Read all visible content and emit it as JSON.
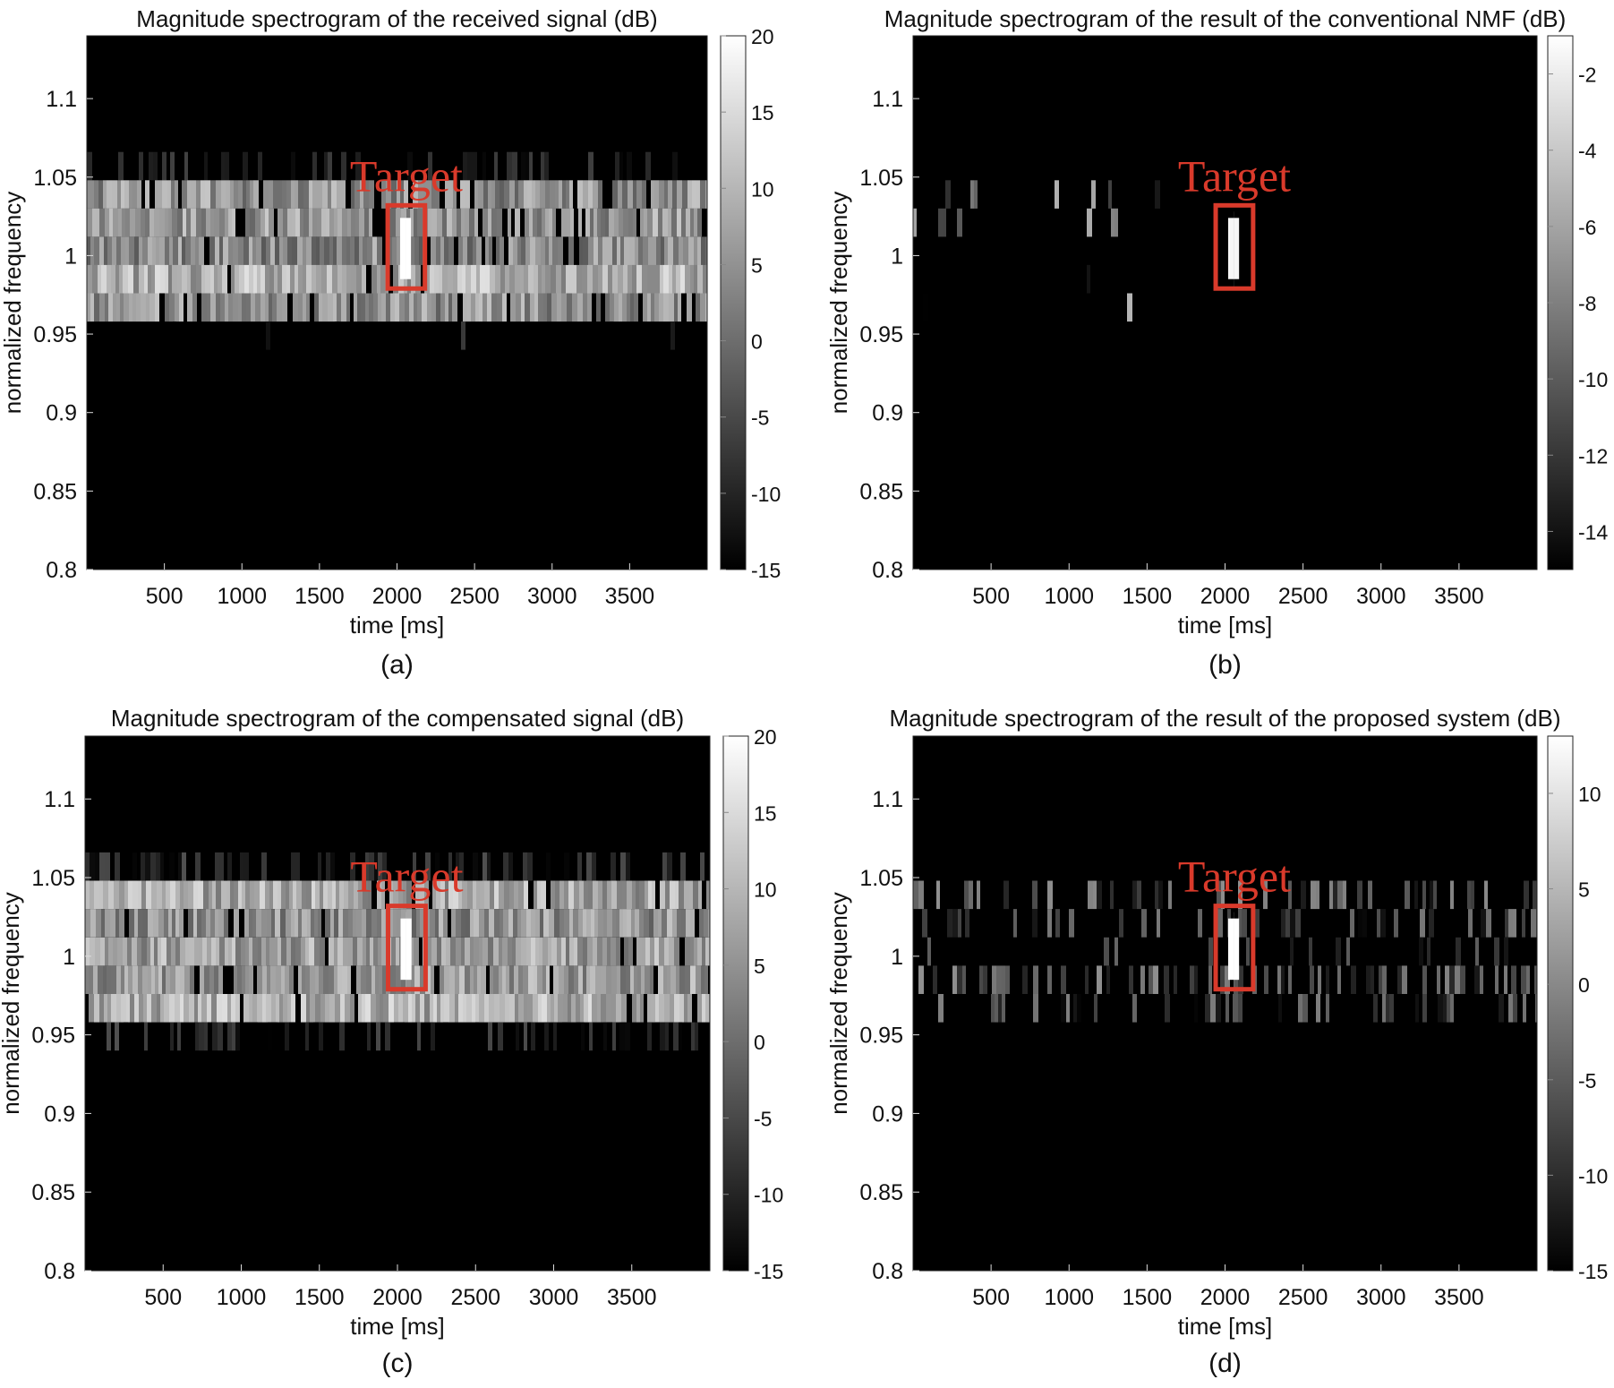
{
  "chart_data": [
    {
      "type": "heatmap",
      "panel_label": "(a)",
      "title": "Magnitude spectrogram of the received signal (dB)",
      "xlabel": "time [ms]",
      "ylabel": "normalized frequency",
      "xlim": [
        0,
        4000
      ],
      "ylim": [
        0.8,
        1.14
      ],
      "xticks": [
        500,
        1000,
        1500,
        2000,
        2500,
        3000,
        3500
      ],
      "yticks": [
        0.8,
        0.85,
        0.9,
        0.95,
        1,
        1.05,
        1.1
      ],
      "colorbar": {
        "min": -15,
        "max": 20,
        "ticks": [
          20,
          15,
          10,
          5,
          0,
          -5,
          -10,
          -15
        ],
        "unit": "dB"
      },
      "annotation": {
        "text": "Target",
        "time_range_ms": [
          1940,
          2180
        ],
        "freq_range": [
          0.979,
          1.032
        ],
        "color": "#d93a2b"
      },
      "activity_bands": [
        {
          "freq_range": [
            1.048,
            1.066
          ],
          "level_db": -13,
          "density": 0.35
        },
        {
          "freq_range": [
            1.03,
            1.048
          ],
          "level_db": 5,
          "density": 0.9
        },
        {
          "freq_range": [
            1.012,
            1.03
          ],
          "level_db": 6,
          "density": 0.9
        },
        {
          "freq_range": [
            0.994,
            1.012
          ],
          "level_db": 4,
          "density": 0.9
        },
        {
          "freq_range": [
            0.976,
            0.994
          ],
          "level_db": 9,
          "density": 0.95
        },
        {
          "freq_range": [
            0.958,
            0.976
          ],
          "level_db": 5,
          "density": 0.9
        },
        {
          "freq_range": [
            0.94,
            0.958
          ],
          "level_db": -14,
          "density": 0.05
        }
      ],
      "target_level_db": 20
    },
    {
      "type": "heatmap",
      "panel_label": "(b)",
      "title": "Magnitude spectrogram of the result of the conventional NMF (dB)",
      "xlabel": "time [ms]",
      "ylabel": "normalized frequency",
      "xlim": [
        0,
        4000
      ],
      "ylim": [
        0.8,
        1.14
      ],
      "xticks": [
        500,
        1000,
        1500,
        2000,
        2500,
        3000,
        3500
      ],
      "yticks": [
        0.8,
        0.85,
        0.9,
        0.95,
        1,
        1.05,
        1.1
      ],
      "colorbar": {
        "min": -15,
        "max": -1,
        "ticks": [
          -2,
          -4,
          -6,
          -8,
          -10,
          -12,
          -14
        ],
        "unit": "dB"
      },
      "annotation": {
        "text": "Target",
        "time_range_ms": [
          1940,
          2180
        ],
        "freq_range": [
          0.979,
          1.032
        ],
        "color": "#d93a2b"
      },
      "activity_bands": [
        {
          "freq_range": [
            1.03,
            1.048
          ],
          "level_db": -10,
          "density": 0.12,
          "time_max_ms": 1700
        },
        {
          "freq_range": [
            1.012,
            1.03
          ],
          "level_db": -11,
          "density": 0.08,
          "time_max_ms": 1700
        },
        {
          "freq_range": [
            0.976,
            0.994
          ],
          "level_db": -13,
          "density": 0.06,
          "time_max_ms": 1500
        },
        {
          "freq_range": [
            0.958,
            0.976
          ],
          "level_db": -11,
          "density": 0.1,
          "time_max_ms": 1500
        }
      ],
      "target_level_db": -1.5
    },
    {
      "type": "heatmap",
      "panel_label": "(c)",
      "title": "Magnitude spectrogram of the compensated signal (dB)",
      "xlabel": "time [ms]",
      "ylabel": "normalized frequency",
      "xlim": [
        0,
        4000
      ],
      "ylim": [
        0.8,
        1.14
      ],
      "xticks": [
        500,
        1000,
        1500,
        2000,
        2500,
        3000,
        3500
      ],
      "yticks": [
        0.8,
        0.85,
        0.9,
        0.95,
        1,
        1.05,
        1.1
      ],
      "colorbar": {
        "min": -15,
        "max": 20,
        "ticks": [
          20,
          15,
          10,
          5,
          0,
          -5,
          -10,
          -15
        ],
        "unit": "dB"
      },
      "annotation": {
        "text": "Target",
        "time_range_ms": [
          1940,
          2180
        ],
        "freq_range": [
          0.979,
          1.032
        ],
        "color": "#d93a2b"
      },
      "activity_bands": [
        {
          "freq_range": [
            1.048,
            1.066
          ],
          "level_db": -11,
          "density": 0.45
        },
        {
          "freq_range": [
            1.03,
            1.048
          ],
          "level_db": 8,
          "density": 0.95
        },
        {
          "freq_range": [
            1.012,
            1.03
          ],
          "level_db": 5,
          "density": 0.95
        },
        {
          "freq_range": [
            0.994,
            1.012
          ],
          "level_db": 7,
          "density": 0.95
        },
        {
          "freq_range": [
            0.976,
            0.994
          ],
          "level_db": 6,
          "density": 0.95
        },
        {
          "freq_range": [
            0.958,
            0.976
          ],
          "level_db": 9,
          "density": 0.95
        },
        {
          "freq_range": [
            0.94,
            0.958
          ],
          "level_db": -11,
          "density": 0.45
        }
      ],
      "target_level_db": 20
    },
    {
      "type": "heatmap",
      "panel_label": "(d)",
      "title": "Magnitude spectrogram of the result of the proposed system (dB)",
      "xlabel": "time [ms]",
      "ylabel": "normalized frequency",
      "xlim": [
        0,
        4000
      ],
      "ylim": [
        0.8,
        1.14
      ],
      "xticks": [
        500,
        1000,
        1500,
        2000,
        2500,
        3000,
        3500
      ],
      "yticks": [
        0.8,
        0.85,
        0.9,
        0.95,
        1,
        1.05,
        1.1
      ],
      "colorbar": {
        "min": -15,
        "max": 13,
        "ticks": [
          10,
          5,
          0,
          -5,
          -10,
          -15
        ],
        "unit": "dB"
      },
      "annotation": {
        "text": "Target",
        "time_range_ms": [
          1940,
          2180
        ],
        "freq_range": [
          0.979,
          1.032
        ],
        "color": "#d93a2b"
      },
      "activity_bands": [
        {
          "freq_range": [
            1.03,
            1.048
          ],
          "level_db": -6,
          "density": 0.35
        },
        {
          "freq_range": [
            1.012,
            1.03
          ],
          "level_db": -8,
          "density": 0.3
        },
        {
          "freq_range": [
            0.994,
            1.012
          ],
          "level_db": -10,
          "density": 0.15
        },
        {
          "freq_range": [
            0.976,
            0.994
          ],
          "level_db": -6,
          "density": 0.4
        },
        {
          "freq_range": [
            0.958,
            0.976
          ],
          "level_db": -8,
          "density": 0.35
        }
      ],
      "target_level_db": 13
    }
  ]
}
